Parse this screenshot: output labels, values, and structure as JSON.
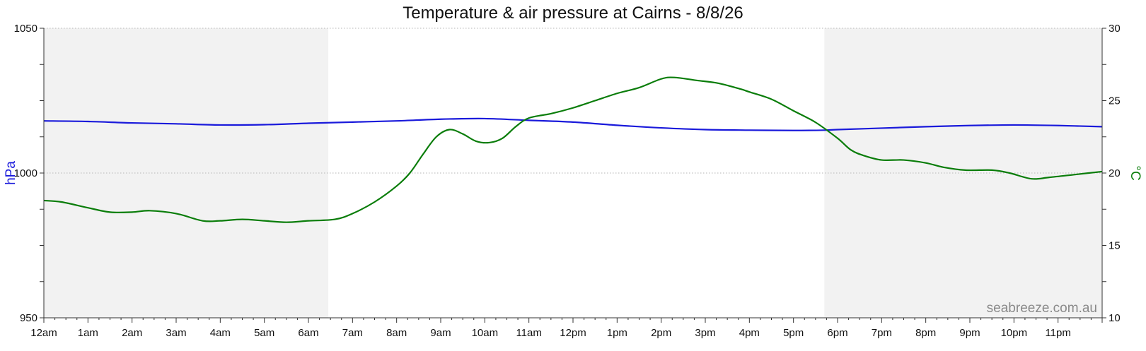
{
  "chart_data": {
    "type": "line",
    "title": "Temperature & air pressure at Cairns - 8/8/26",
    "watermark": "seabreeze.com.au",
    "x_unit": "hours",
    "xlim": [
      0,
      24
    ],
    "x_ticks": [
      "12am",
      "1am",
      "2am",
      "3am",
      "4am",
      "5am",
      "6am",
      "7am",
      "8am",
      "9am",
      "10am",
      "11am",
      "12pm",
      "1pm",
      "2pm",
      "3pm",
      "4pm",
      "5pm",
      "6pm",
      "7pm",
      "8pm",
      "9pm",
      "10pm",
      "11pm"
    ],
    "left_axis": {
      "label": "hPa",
      "range": [
        950,
        1050
      ],
      "ticks": [
        "950",
        "1000",
        "1050"
      ],
      "color": "#1a1adb"
    },
    "right_axis": {
      "label": "°C",
      "range": [
        10,
        30
      ],
      "ticks": [
        "10",
        "15",
        "20",
        "25",
        "30"
      ],
      "color": "#0a7d0a"
    },
    "grid": "horizontal dotted",
    "night_shading": [
      [
        0,
        6.45
      ],
      [
        17.7,
        24
      ]
    ],
    "series": [
      {
        "name": "pressure",
        "axis": "left",
        "color": "#1a1adb",
        "points": [
          [
            0,
            1018
          ],
          [
            1,
            1017.8
          ],
          [
            2,
            1017.3
          ],
          [
            3,
            1017
          ],
          [
            4,
            1016.6
          ],
          [
            5,
            1016.7
          ],
          [
            6,
            1017.2
          ],
          [
            7,
            1017.6
          ],
          [
            8,
            1018
          ],
          [
            9,
            1018.6
          ],
          [
            10,
            1018.8
          ],
          [
            11,
            1018.2
          ],
          [
            12,
            1017.6
          ],
          [
            13,
            1016.5
          ],
          [
            14,
            1015.6
          ],
          [
            15,
            1015
          ],
          [
            16,
            1014.8
          ],
          [
            17,
            1014.7
          ],
          [
            17.7,
            1014.8
          ],
          [
            18,
            1015
          ],
          [
            19,
            1015.5
          ],
          [
            20,
            1016
          ],
          [
            21,
            1016.4
          ],
          [
            22,
            1016.6
          ],
          [
            23,
            1016.4
          ],
          [
            24,
            1016
          ]
        ]
      },
      {
        "name": "temperature",
        "axis": "right",
        "color": "#0a7d0a",
        "points": [
          [
            0,
            18.1
          ],
          [
            0.4,
            18
          ],
          [
            1,
            17.6
          ],
          [
            1.5,
            17.3
          ],
          [
            2,
            17.3
          ],
          [
            2.4,
            17.4
          ],
          [
            3,
            17.2
          ],
          [
            3.6,
            16.7
          ],
          [
            4,
            16.7
          ],
          [
            4.5,
            16.8
          ],
          [
            5,
            16.7
          ],
          [
            5.5,
            16.6
          ],
          [
            6,
            16.7
          ],
          [
            6.6,
            16.8
          ],
          [
            7,
            17.2
          ],
          [
            7.5,
            18
          ],
          [
            8,
            19.1
          ],
          [
            8.3,
            20
          ],
          [
            8.6,
            21.3
          ],
          [
            8.9,
            22.5
          ],
          [
            9.2,
            23
          ],
          [
            9.5,
            22.7
          ],
          [
            9.8,
            22.2
          ],
          [
            10.1,
            22.1
          ],
          [
            10.4,
            22.4
          ],
          [
            10.7,
            23.2
          ],
          [
            11,
            23.8
          ],
          [
            11.5,
            24.1
          ],
          [
            12,
            24.5
          ],
          [
            12.5,
            25
          ],
          [
            13,
            25.5
          ],
          [
            13.5,
            25.9
          ],
          [
            14,
            26.5
          ],
          [
            14.3,
            26.6
          ],
          [
            14.8,
            26.4
          ],
          [
            15.3,
            26.2
          ],
          [
            15.8,
            25.8
          ],
          [
            16,
            25.6
          ],
          [
            16.5,
            25.1
          ],
          [
            17,
            24.3
          ],
          [
            17.5,
            23.5
          ],
          [
            18,
            22.4
          ],
          [
            18.3,
            21.6
          ],
          [
            18.6,
            21.2
          ],
          [
            19,
            20.9
          ],
          [
            19.5,
            20.9
          ],
          [
            20,
            20.7
          ],
          [
            20.4,
            20.4
          ],
          [
            20.9,
            20.2
          ],
          [
            21.5,
            20.2
          ],
          [
            21.9,
            20
          ],
          [
            22.4,
            19.6
          ],
          [
            22.8,
            19.7
          ],
          [
            23.4,
            19.9
          ],
          [
            24,
            20.1
          ]
        ]
      }
    ]
  }
}
